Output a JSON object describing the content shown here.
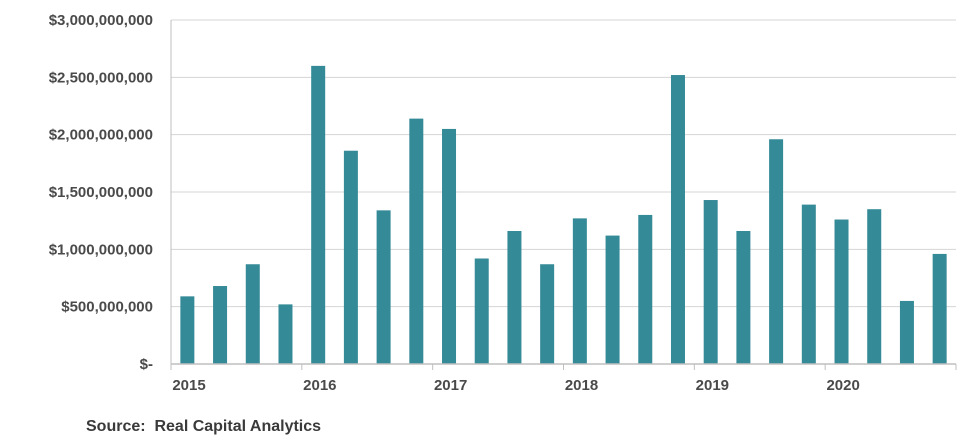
{
  "chart_data": {
    "type": "bar",
    "ylim": [
      0,
      3000000000
    ],
    "yticks": [
      0,
      500000000,
      1000000000,
      1500000000,
      2000000000,
      2500000000,
      3000000000
    ],
    "ytick_labels": [
      "$-",
      "$500,000,000",
      "$1,000,000,000",
      "$1,500,000,000",
      "$2,000,000,000",
      "$2,500,000,000",
      "$3,000,000,000"
    ],
    "x_labels": [
      {
        "label": "2015",
        "index": 0
      },
      {
        "label": "2016",
        "index": 4
      },
      {
        "label": "2017",
        "index": 8
      },
      {
        "label": "2018",
        "index": 12
      },
      {
        "label": "2019",
        "index": 16
      },
      {
        "label": "2020",
        "index": 20
      }
    ],
    "values": [
      590000000,
      680000000,
      870000000,
      520000000,
      2600000000,
      1860000000,
      1340000000,
      2140000000,
      2050000000,
      920000000,
      1160000000,
      870000000,
      1270000000,
      1120000000,
      1300000000,
      2520000000,
      1430000000,
      1160000000,
      1960000000,
      1390000000,
      1260000000,
      1350000000,
      550000000,
      960000000
    ],
    "bar_color": "#358a97",
    "grid": true
  },
  "source": "Source:  Real Capital Analytics"
}
